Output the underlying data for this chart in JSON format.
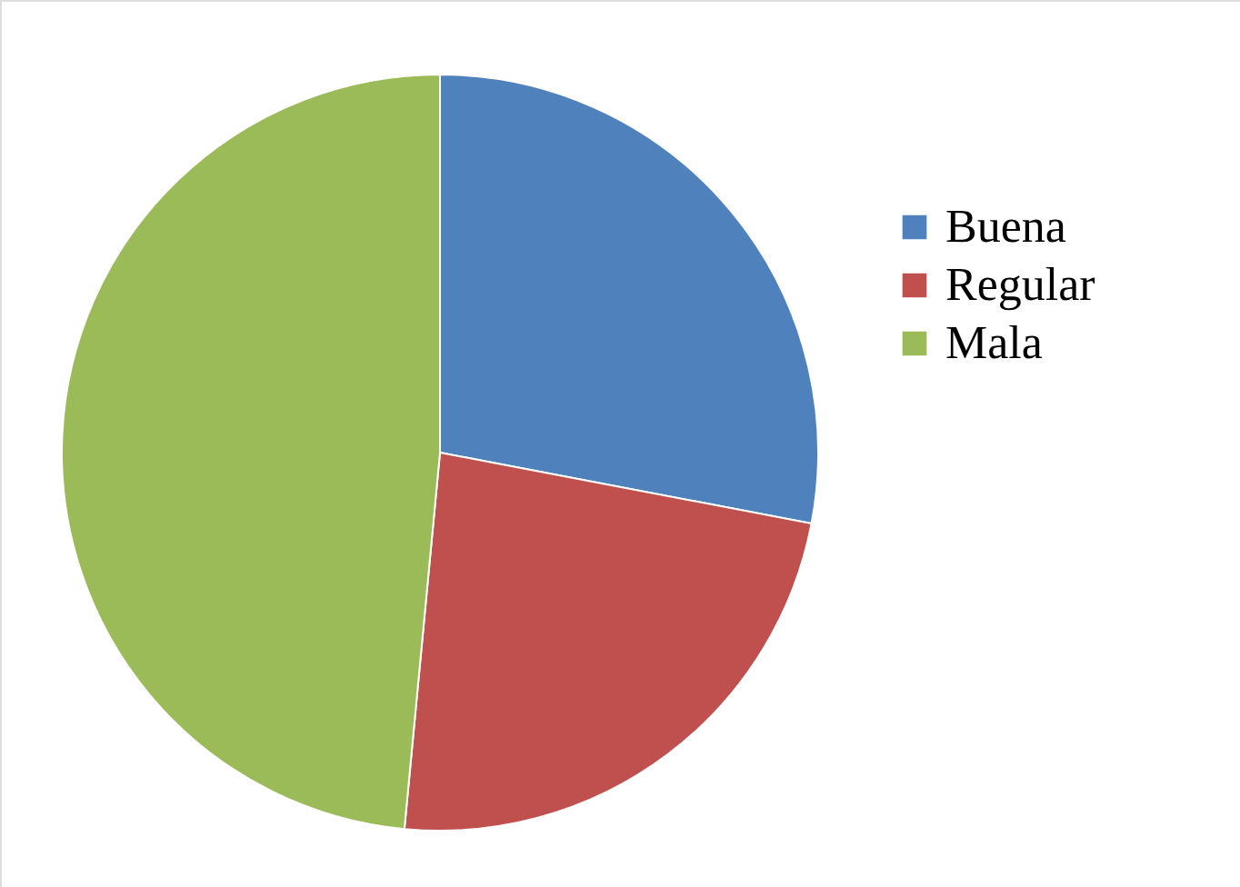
{
  "chart_data": {
    "type": "pie",
    "categories": [
      "Buena",
      "Regular",
      "Mala"
    ],
    "values": [
      28,
      23.5,
      48.5
    ],
    "colors": [
      "#4f81bd",
      "#c0504d",
      "#9bbb59"
    ],
    "legend": "right"
  }
}
